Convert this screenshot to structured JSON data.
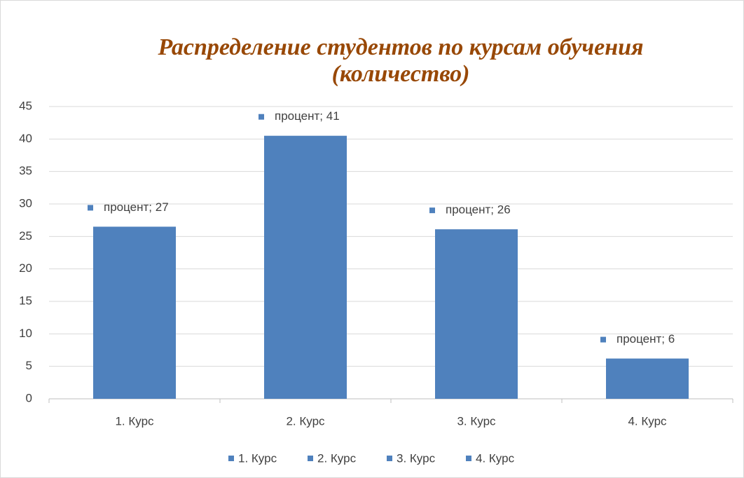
{
  "chart_data": {
    "type": "bar",
    "title": [
      "Распределение студентов по курсам обучения",
      "(количество)"
    ],
    "categories": [
      "1. Курс",
      "2. Курс",
      "3. Курс",
      "4. Курс"
    ],
    "values": [
      26.5,
      40.5,
      26.1,
      6.2
    ],
    "value_labels": [
      "процент; 27",
      "процент; 41",
      "процент; 26",
      "процент; 6"
    ],
    "color": "#4f81bd",
    "ylim": [
      0,
      45
    ],
    "yticks": [
      0,
      5,
      10,
      15,
      20,
      25,
      30,
      35,
      40,
      45
    ],
    "grid": true,
    "legend": "bottom"
  }
}
